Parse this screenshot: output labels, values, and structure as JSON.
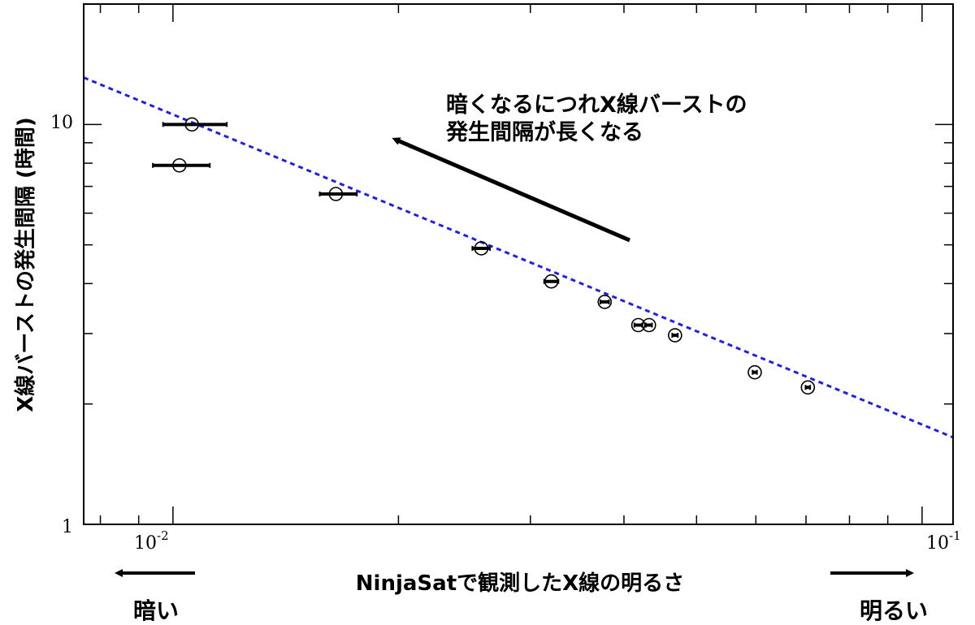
{
  "chart_data": {
    "type": "scatter",
    "title": "",
    "xlabel": "NinjaSatで観測したX線の明るさ",
    "ylabel": "X線バーストの発生間隔 (時間)",
    "xscale": "log",
    "yscale": "log",
    "xlim": [
      0.0076,
      0.11
    ],
    "ylim": [
      1,
      20
    ],
    "grid": false,
    "x_ticks": [
      {
        "base": "10",
        "exp": "-2",
        "value": 0.01
      },
      {
        "base": "10",
        "exp": "-1",
        "value": 0.1
      }
    ],
    "y_ticks": [
      {
        "label": "1",
        "value": 1
      },
      {
        "label": "10",
        "value": 10
      }
    ],
    "points": [
      {
        "x": 0.0106,
        "y": 10.0,
        "xerr_low": 0.0097,
        "xerr_high": 0.0118
      },
      {
        "x": 0.0102,
        "y": 7.9,
        "xerr_low": 0.0094,
        "xerr_high": 0.0112
      },
      {
        "x": 0.0165,
        "y": 6.7,
        "xerr_low": 0.0157,
        "xerr_high": 0.0176
      },
      {
        "x": 0.0258,
        "y": 4.9,
        "xerr_low": 0.0251,
        "xerr_high": 0.0265
      },
      {
        "x": 0.032,
        "y": 4.05,
        "xerr_low": 0.0313,
        "xerr_high": 0.0327
      },
      {
        "x": 0.0377,
        "y": 3.6,
        "xerr_low": 0.0372,
        "xerr_high": 0.0382
      },
      {
        "x": 0.0418,
        "y": 3.15,
        "xerr_low": 0.0413,
        "xerr_high": 0.0423
      },
      {
        "x": 0.0432,
        "y": 3.15,
        "xerr_low": 0.0428,
        "xerr_high": 0.0436
      },
      {
        "x": 0.0468,
        "y": 2.97,
        "xerr_low": 0.0464,
        "xerr_high": 0.0472
      },
      {
        "x": 0.0598,
        "y": 2.4,
        "xerr_low": 0.0594,
        "xerr_high": 0.0602
      },
      {
        "x": 0.0704,
        "y": 2.2,
        "xerr_low": 0.0699,
        "xerr_high": 0.0709
      }
    ],
    "fit_line": {
      "style": "dashed",
      "color": "#1f1fe6",
      "x": [
        0.0076,
        0.11
      ],
      "y": [
        13.1,
        1.65
      ]
    },
    "annotation": {
      "lines": [
        "暗くなるにつれX線バーストの",
        "発生間隔が長くなる"
      ]
    },
    "left_label": "暗い",
    "right_label": "明るい"
  },
  "colors": {
    "fit_line": "#1f1fe6",
    "marker": "#000000",
    "frame": "#000000"
  }
}
